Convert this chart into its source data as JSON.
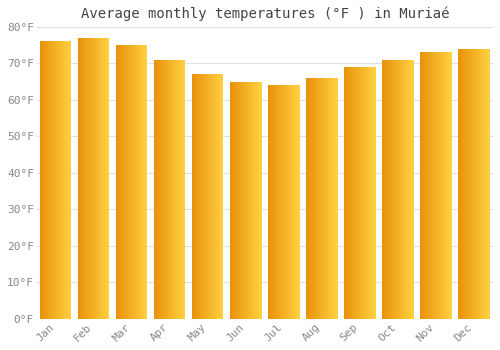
{
  "months": [
    "Jan",
    "Feb",
    "Mar",
    "Apr",
    "May",
    "Jun",
    "Jul",
    "Aug",
    "Sep",
    "Oct",
    "Nov",
    "Dec"
  ],
  "values": [
    76,
    77,
    75,
    71,
    67,
    65,
    64,
    66,
    69,
    71,
    73,
    74
  ],
  "bar_color_left": "#E8920A",
  "bar_color_right": "#FFD040",
  "title": "Average monthly temperatures (°F ) in Muriaé",
  "ylim": [
    0,
    80
  ],
  "yticks": [
    0,
    10,
    20,
    30,
    40,
    50,
    60,
    70,
    80
  ],
  "ytick_labels": [
    "0°F",
    "10°F",
    "20°F",
    "30°F",
    "40°F",
    "50°F",
    "60°F",
    "70°F",
    "80°F"
  ],
  "bg_color": "#FFFFFF",
  "grid_color": "#E0E0E0",
  "title_fontsize": 10,
  "tick_fontsize": 8,
  "tick_color": "#888888",
  "n_gradient_steps": 50
}
